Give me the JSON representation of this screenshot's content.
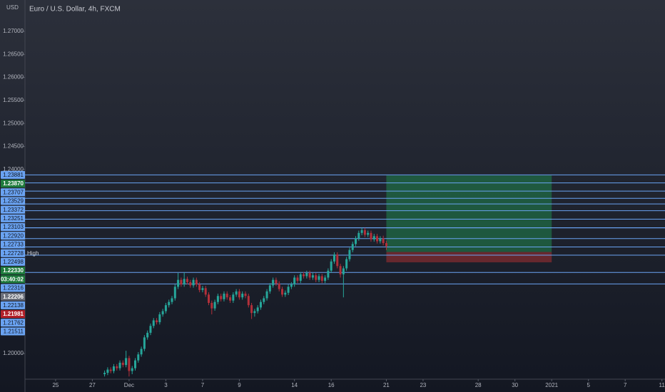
{
  "chart_data": {
    "type": "candlestick",
    "title": "Euro / U.S. Dollar, 4h, FXCM",
    "currency": "USD",
    "up_color": "#26a69a",
    "down_color": "#b2303a",
    "level_color": "#6aa3f2",
    "xlim": [
      0,
      209
    ],
    "ylim": [
      1.19442,
      1.27682
    ],
    "yticks": [
      {
        "value": 1.27,
        "label": "1.27000"
      },
      {
        "value": 1.265,
        "label": "1.26500"
      },
      {
        "value": 1.26,
        "label": "1.26000"
      },
      {
        "value": 1.255,
        "label": "1.25500"
      },
      {
        "value": 1.25,
        "label": "1.25000"
      },
      {
        "value": 1.245,
        "label": "1.24500"
      },
      {
        "value": 1.24,
        "label": "1.24000"
      },
      {
        "value": 1.2,
        "label": "1.20000"
      }
    ],
    "xticks": [
      {
        "value": 10,
        "label": "25"
      },
      {
        "value": 22,
        "label": "27"
      },
      {
        "value": 34,
        "label": "Dec"
      },
      {
        "value": 46,
        "label": "3"
      },
      {
        "value": 58,
        "label": "7"
      },
      {
        "value": 70,
        "label": "9"
      },
      {
        "value": 88,
        "label": "14"
      },
      {
        "value": 100,
        "label": "16"
      },
      {
        "value": 118,
        "label": "21"
      },
      {
        "value": 130,
        "label": "23"
      },
      {
        "value": 148,
        "label": "28"
      },
      {
        "value": 160,
        "label": "30"
      },
      {
        "value": 172,
        "label": "2021"
      },
      {
        "value": 184,
        "label": "5"
      },
      {
        "value": 196,
        "label": "7"
      },
      {
        "value": 208,
        "label": "11"
      }
    ],
    "x": [
      26,
      27,
      28,
      29,
      30,
      31,
      32,
      33,
      34,
      35,
      36,
      37,
      38,
      39,
      40,
      41,
      42,
      43,
      44,
      45,
      46,
      47,
      48,
      49,
      50,
      51,
      52,
      53,
      54,
      55,
      56,
      57,
      58,
      59,
      60,
      61,
      62,
      63,
      64,
      65,
      66,
      67,
      68,
      69,
      70,
      71,
      72,
      73,
      74,
      75,
      76,
      77,
      78,
      79,
      80,
      81,
      82,
      83,
      84,
      85,
      86,
      87,
      88,
      89,
      90,
      91,
      92,
      93,
      94,
      95,
      96,
      97,
      98,
      99,
      100,
      101,
      102,
      103,
      104,
      105,
      106,
      107,
      108,
      109,
      110,
      111,
      112,
      113,
      114,
      115,
      116,
      117,
      118
    ],
    "open": [
      1.1955,
      1.1958,
      1.1965,
      1.1962,
      1.1972,
      1.1968,
      1.198,
      1.1975,
      1.199,
      1.1962,
      1.1968,
      1.1985,
      1.1998,
      1.201,
      1.2035,
      1.2045,
      1.206,
      1.2072,
      1.2068,
      1.2085,
      1.2092,
      1.2105,
      1.2112,
      1.212,
      1.2145,
      1.216,
      1.215,
      1.2162,
      1.2155,
      1.2148,
      1.216,
      1.215,
      1.2138,
      1.2142,
      1.2128,
      1.211,
      1.2098,
      1.2112,
      1.2125,
      1.2118,
      1.213,
      1.2122,
      1.2115,
      1.2128,
      1.2135,
      1.2122,
      1.213,
      1.2125,
      1.2105,
      1.2088,
      1.2092,
      1.21,
      1.2112,
      1.212,
      1.2135,
      1.2148,
      1.216,
      1.2152,
      1.214,
      1.2128,
      1.2132,
      1.2145,
      1.215,
      1.2165,
      1.2158,
      1.2172,
      1.2168,
      1.2175,
      1.2165,
      1.217,
      1.216,
      1.2168,
      1.2158,
      1.2165,
      1.218,
      1.22,
      1.2215,
      1.219,
      1.2172,
      1.2185,
      1.2205,
      1.2225,
      1.2238,
      1.225,
      1.2262,
      1.2268,
      1.2258,
      1.2262,
      1.2248,
      1.2255,
      1.2244,
      1.225,
      1.224
    ],
    "high": [
      1.1963,
      1.197,
      1.197,
      1.1977,
      1.1977,
      1.1985,
      1.1985,
      1.2006,
      1.1995,
      1.1973,
      1.199,
      1.2003,
      1.2015,
      1.204,
      1.205,
      1.2065,
      1.2077,
      1.2077,
      1.209,
      1.2097,
      1.211,
      1.2117,
      1.2125,
      1.215,
      1.2175,
      1.2165,
      1.2176,
      1.2167,
      1.216,
      1.2165,
      1.2165,
      1.2155,
      1.2147,
      1.2147,
      1.2133,
      1.2115,
      1.2117,
      1.213,
      1.213,
      1.2135,
      1.2135,
      1.2127,
      1.2133,
      1.214,
      1.214,
      1.2135,
      1.2135,
      1.213,
      1.211,
      1.2097,
      1.2105,
      1.2117,
      1.2125,
      1.214,
      1.2153,
      1.2165,
      1.2165,
      1.2157,
      1.2145,
      1.2137,
      1.215,
      1.2155,
      1.217,
      1.217,
      1.2177,
      1.2177,
      1.218,
      1.218,
      1.2175,
      1.2175,
      1.2173,
      1.2173,
      1.217,
      1.2185,
      1.2205,
      1.222,
      1.222,
      1.2195,
      1.219,
      1.221,
      1.223,
      1.2243,
      1.2255,
      1.2267,
      1.2273,
      1.2273,
      1.2267,
      1.2267,
      1.226,
      1.226,
      1.2255,
      1.2256,
      1.2245
    ],
    "low": [
      1.195,
      1.1953,
      1.1957,
      1.1957,
      1.1963,
      1.1963,
      1.197,
      1.197,
      1.195,
      1.1955,
      1.1963,
      1.198,
      1.1993,
      1.2005,
      1.203,
      1.204,
      1.2055,
      1.2063,
      1.2063,
      1.208,
      1.2087,
      1.21,
      1.2107,
      1.2115,
      1.214,
      1.2145,
      1.2145,
      1.215,
      1.2143,
      1.2143,
      1.2145,
      1.2133,
      1.2133,
      1.2123,
      1.2105,
      1.2085,
      1.2093,
      1.2107,
      1.2113,
      1.2113,
      1.2117,
      1.211,
      1.211,
      1.2123,
      1.2117,
      1.2117,
      1.212,
      1.21,
      1.2075,
      1.208,
      1.2087,
      1.2095,
      1.2107,
      1.2115,
      1.213,
      1.2143,
      1.2147,
      1.2135,
      1.2123,
      1.2123,
      1.2127,
      1.214,
      1.2145,
      1.2153,
      1.2153,
      1.2163,
      1.2163,
      1.216,
      1.216,
      1.2155,
      1.2155,
      1.2153,
      1.2153,
      1.216,
      1.2175,
      1.2195,
      1.2185,
      1.2165,
      1.2122,
      1.218,
      1.22,
      1.222,
      1.2233,
      1.2245,
      1.2257,
      1.2253,
      1.2253,
      1.2243,
      1.2243,
      1.2239,
      1.2239,
      1.2235,
      1.2225
    ],
    "close": [
      1.1958,
      1.1965,
      1.1962,
      1.1972,
      1.1968,
      1.198,
      1.1975,
      1.199,
      1.1962,
      1.1968,
      1.1985,
      1.1998,
      1.201,
      1.2035,
      1.2045,
      1.206,
      1.2072,
      1.2068,
      1.2085,
      1.2092,
      1.2105,
      1.2112,
      1.212,
      1.2145,
      1.216,
      1.215,
      1.2162,
      1.2155,
      1.2148,
      1.216,
      1.215,
      1.2138,
      1.2142,
      1.2128,
      1.211,
      1.2098,
      1.2112,
      1.2125,
      1.2118,
      1.213,
      1.2122,
      1.2115,
      1.2128,
      1.2135,
      1.2122,
      1.213,
      1.2125,
      1.2105,
      1.2088,
      1.2092,
      1.21,
      1.2112,
      1.212,
      1.2135,
      1.2148,
      1.216,
      1.2152,
      1.214,
      1.2128,
      1.2132,
      1.2145,
      1.215,
      1.2165,
      1.2158,
      1.2172,
      1.2168,
      1.2175,
      1.2165,
      1.217,
      1.216,
      1.2168,
      1.2158,
      1.2165,
      1.218,
      1.22,
      1.2215,
      1.219,
      1.2172,
      1.2185,
      1.2205,
      1.2225,
      1.2238,
      1.225,
      1.2262,
      1.2268,
      1.2258,
      1.2262,
      1.2248,
      1.2255,
      1.2244,
      1.225,
      1.224,
      1.2233
    ],
    "levels": [
      {
        "value": 1.23881,
        "label": "1.23881"
      },
      {
        "value": 1.23707,
        "label": "1.23707"
      },
      {
        "value": 1.23529,
        "label": "1.23529"
      },
      {
        "value": 1.23372,
        "label": "1.23372"
      },
      {
        "value": 1.23251,
        "label": "1.23251"
      },
      {
        "value": 1.23103,
        "label": "1.23103"
      },
      {
        "value": 1.2292,
        "label": "1.22920"
      },
      {
        "value": 1.22733,
        "label": "1.22733"
      },
      {
        "value": 1.22498,
        "label": "1.22498"
      },
      {
        "value": 1.22316,
        "label": "1.22316"
      },
      {
        "value": 1.22138,
        "label": "1.22138"
      },
      {
        "value": 1.21762,
        "label": "1.21762"
      },
      {
        "value": 1.21511,
        "label": "1.21511"
      }
    ],
    "high_marker": {
      "value": 1.22728,
      "label": "1.22728",
      "text": "High"
    },
    "last_price": {
      "value": 1.2233,
      "label": "1.22330",
      "countdown": "03:40:02",
      "color": "#1e7a3c"
    },
    "position": {
      "x": [
        118,
        172
      ],
      "target": {
        "value": 1.2387,
        "label": "1.23870",
        "color": "#1e7a3c"
      },
      "entry": {
        "value": 1.22206,
        "label": "1.22206",
        "color": "#6b6f7a"
      },
      "stop": {
        "value": 1.21981,
        "label": "1.21981",
        "color": "#b2202a"
      },
      "profit_color": "#1f6b45",
      "loss_color": "#7a2a30"
    }
  }
}
